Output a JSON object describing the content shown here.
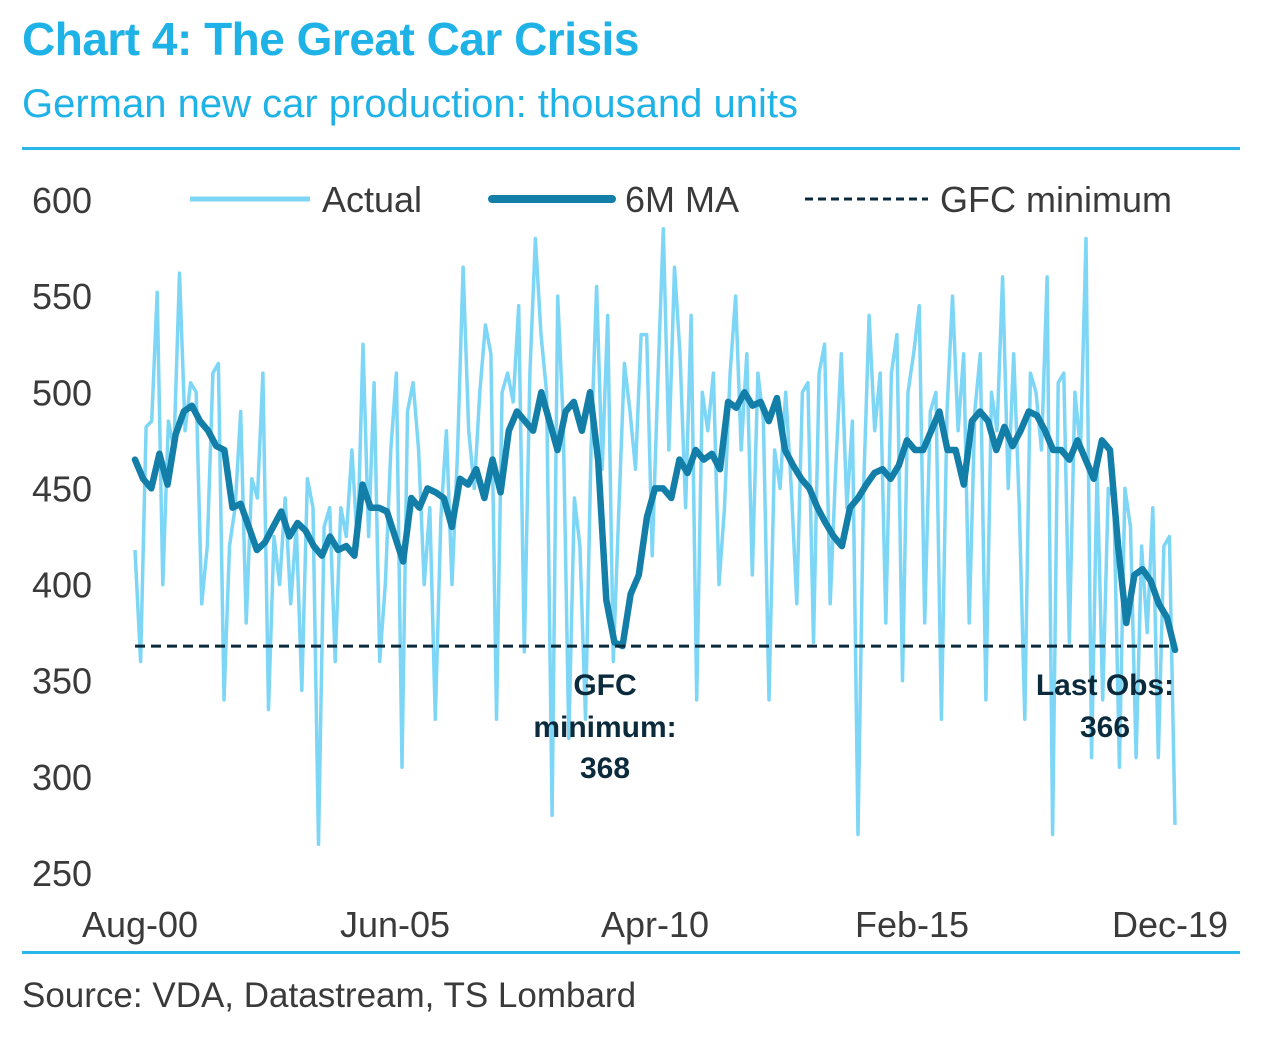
{
  "header": {
    "title": "Chart 4: The Great Car Crisis",
    "subtitle": "German new car production: thousand units"
  },
  "footer": {
    "source": "Source: VDA, Datastream, TS Lombard"
  },
  "colors": {
    "accent": "#1fb2e6",
    "actual": "#7dd6f5",
    "ma": "#137ea8",
    "gfc": "#0b2a3c"
  },
  "chart_data": {
    "type": "line",
    "title": "Chart 4: The Great Car Crisis",
    "subtitle": "German new car production: thousand units",
    "xlabel": "",
    "ylabel": "",
    "ylim": [
      250,
      600
    ],
    "yticks": [
      "600",
      "550",
      "500",
      "450",
      "400",
      "350",
      "300",
      "250"
    ],
    "xticks": [
      "Aug-00",
      "Jun-05",
      "Apr-10",
      "Feb-15",
      "Dec-19"
    ],
    "x_range": [
      "2000-08",
      "2019-12"
    ],
    "grid": false,
    "legend_position": "top",
    "series": [
      {
        "name": "Actual",
        "style": "thin line",
        "frequency": "monthly",
        "values": [
          418,
          360,
          482,
          485,
          552,
          400,
          485,
          470,
          562,
          480,
          505,
          500,
          390,
          420,
          510,
          515,
          340,
          420,
          440,
          490,
          380,
          455,
          445,
          510,
          335,
          425,
          400,
          445,
          390,
          430,
          345,
          455,
          440,
          265,
          430,
          440,
          360,
          440,
          425,
          470,
          420,
          525,
          425,
          505,
          360,
          400,
          470,
          510,
          305,
          490,
          505,
          470,
          400,
          440,
          330,
          435,
          480,
          400,
          470,
          565,
          480,
          450,
          500,
          535,
          520,
          330,
          500,
          510,
          495,
          545,
          365,
          510,
          580,
          530,
          500,
          280,
          550,
          485,
          320,
          445,
          420,
          330,
          470,
          555,
          460,
          540,
          360,
          440,
          515,
          490,
          460,
          530,
          530,
          415,
          505,
          585,
          470,
          565,
          520,
          440,
          540,
          340,
          500,
          480,
          510,
          400,
          440,
          510,
          550,
          470,
          520,
          405,
          510,
          485,
          340,
          470,
          450,
          500,
          450,
          390,
          500,
          505,
          370,
          510,
          525,
          390,
          460,
          520,
          440,
          485,
          270,
          450,
          540,
          480,
          510,
          380,
          510,
          530,
          350,
          500,
          520,
          545,
          380,
          490,
          500,
          330,
          490,
          550,
          480,
          520,
          380,
          490,
          520,
          340,
          500,
          480,
          560,
          450,
          520,
          440,
          330,
          510,
          500,
          470,
          560,
          270,
          505,
          510,
          370,
          500,
          470,
          580,
          310,
          460,
          340,
          450,
          445,
          305,
          450,
          430,
          310,
          420,
          375,
          440,
          310,
          420,
          425,
          275
        ]
      },
      {
        "name": "6M MA",
        "style": "thick line",
        "frequency": "monthly",
        "values": [
          465,
          455,
          450,
          468,
          452,
          478,
          490,
          493,
          485,
          480,
          472,
          470,
          440,
          442,
          430,
          418,
          422,
          430,
          438,
          425,
          432,
          428,
          420,
          415,
          425,
          418,
          420,
          415,
          452,
          440,
          440,
          438,
          425,
          412,
          445,
          440,
          450,
          448,
          445,
          430,
          455,
          452,
          460,
          445,
          465,
          448,
          480,
          490,
          485,
          480,
          500,
          485,
          470,
          490,
          495,
          480,
          500,
          465,
          392,
          370,
          368,
          395,
          405,
          435,
          450,
          450,
          445,
          465,
          458,
          470,
          465,
          468,
          460,
          495,
          492,
          500,
          493,
          495,
          485,
          497,
          470,
          462,
          455,
          450,
          440,
          432,
          425,
          420,
          440,
          445,
          452,
          458,
          460,
          455,
          462,
          475,
          470,
          470,
          480,
          490,
          470,
          470,
          452,
          485,
          490,
          485,
          470,
          482,
          472,
          480,
          490,
          488,
          480,
          470,
          470,
          465,
          475,
          465,
          455,
          475,
          470,
          420,
          380,
          405,
          408,
          402,
          390,
          383,
          366
        ]
      },
      {
        "name": "GFC minimum",
        "style": "dashed line",
        "values": [
          368,
          368
        ]
      }
    ],
    "annotations": [
      {
        "lines": [
          "GFC",
          "minimum:",
          "368"
        ]
      },
      {
        "lines": [
          "Last Obs:",
          "366"
        ]
      }
    ]
  }
}
